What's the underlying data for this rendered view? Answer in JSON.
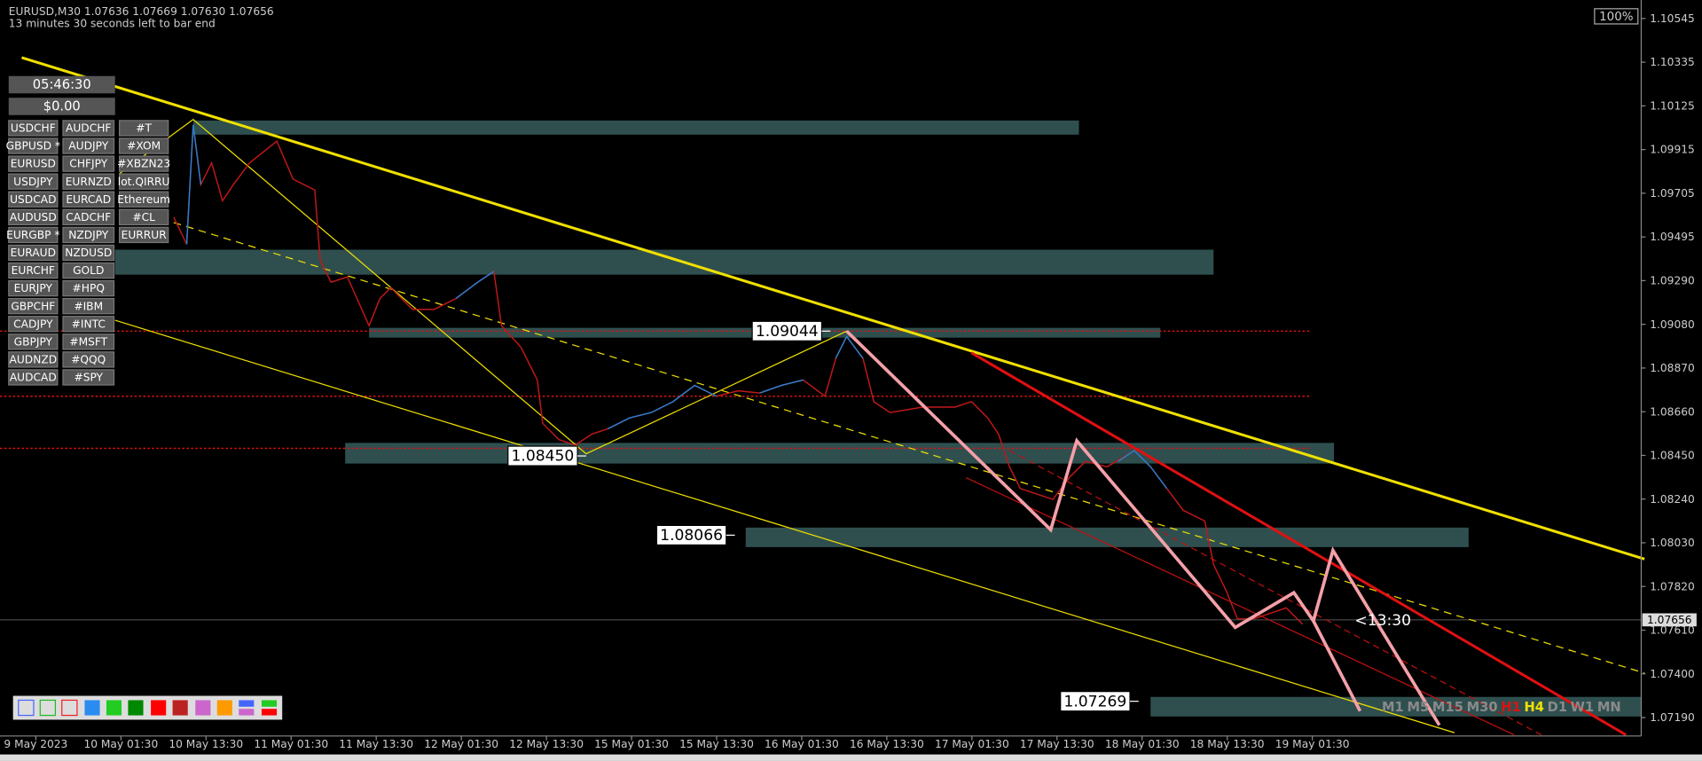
{
  "header": {
    "symbol_line": "EURUSD,M30  1.07636 1.07669 1.07630 1.07656",
    "countdown_text": "13 minutes 30 seconds left to bar end",
    "zoom": "100%"
  },
  "panel": {
    "timer": "05:46:30",
    "balance": "$0.00",
    "column1": [
      "USDCHF",
      "GBPUSD *",
      "EURUSD",
      "USDJPY",
      "USDCAD",
      "AUDUSD",
      "EURGBP *",
      "EURAUD",
      "EURCHF",
      "EURJPY",
      "GBPCHF",
      "CADJPY",
      "GBPJPY",
      "AUDNZD",
      "AUDCAD"
    ],
    "column2": [
      "AUDCHF",
      "AUDJPY",
      "CHFJPY",
      "EURNZD",
      "EURCAD",
      "CADCHF",
      "NZDJPY",
      "NZDUSD",
      "GOLD",
      "#HPQ",
      "#IBM",
      "#INTC",
      "#MSFT",
      "#QQQ",
      "#SPY"
    ],
    "column3": [
      "#T",
      "#XOM",
      "#XBZN23",
      "lot.QIRRU",
      "Ethereum",
      "#CL",
      "EURRUR"
    ]
  },
  "price_axis": [
    "1.10545",
    "1.10335",
    "1.10125",
    "1.09915",
    "1.09705",
    "1.09495",
    "1.09290",
    "1.09080",
    "1.08870",
    "1.08660",
    "1.08450",
    "1.08240",
    "1.08030",
    "1.07820",
    "1.07610",
    "1.07400",
    "1.07190"
  ],
  "current_price": "1.07656",
  "time_axis": [
    "9 May 2023",
    "10 May 01:30",
    "10 May 13:30",
    "11 May 01:30",
    "11 May 13:30",
    "12 May 01:30",
    "12 May 13:30",
    "15 May 01:30",
    "15 May 13:30",
    "16 May 01:30",
    "16 May 13:30",
    "17 May 01:30",
    "17 May 13:30",
    "18 May 01:30",
    "18 May 13:30",
    "19 May 01:30"
  ],
  "price_labels": [
    "1.09044",
    "1.08450",
    "1.08066",
    "1.07269"
  ],
  "bar_timer": "<13:30",
  "timeframes": [
    {
      "label": "M1",
      "color": "#8a8a8a"
    },
    {
      "label": "M5",
      "color": "#8a8a8a"
    },
    {
      "label": "M15",
      "color": "#8a8a8a"
    },
    {
      "label": "M30",
      "color": "#8a8a8a"
    },
    {
      "label": "H1",
      "color": "#e01010"
    },
    {
      "label": "H4",
      "color": "#f0e000"
    },
    {
      "label": "D1",
      "color": "#8a8a8a"
    },
    {
      "label": "W1",
      "color": "#8a8a8a"
    },
    {
      "label": "MN",
      "color": "#8a8a8a"
    }
  ]
}
